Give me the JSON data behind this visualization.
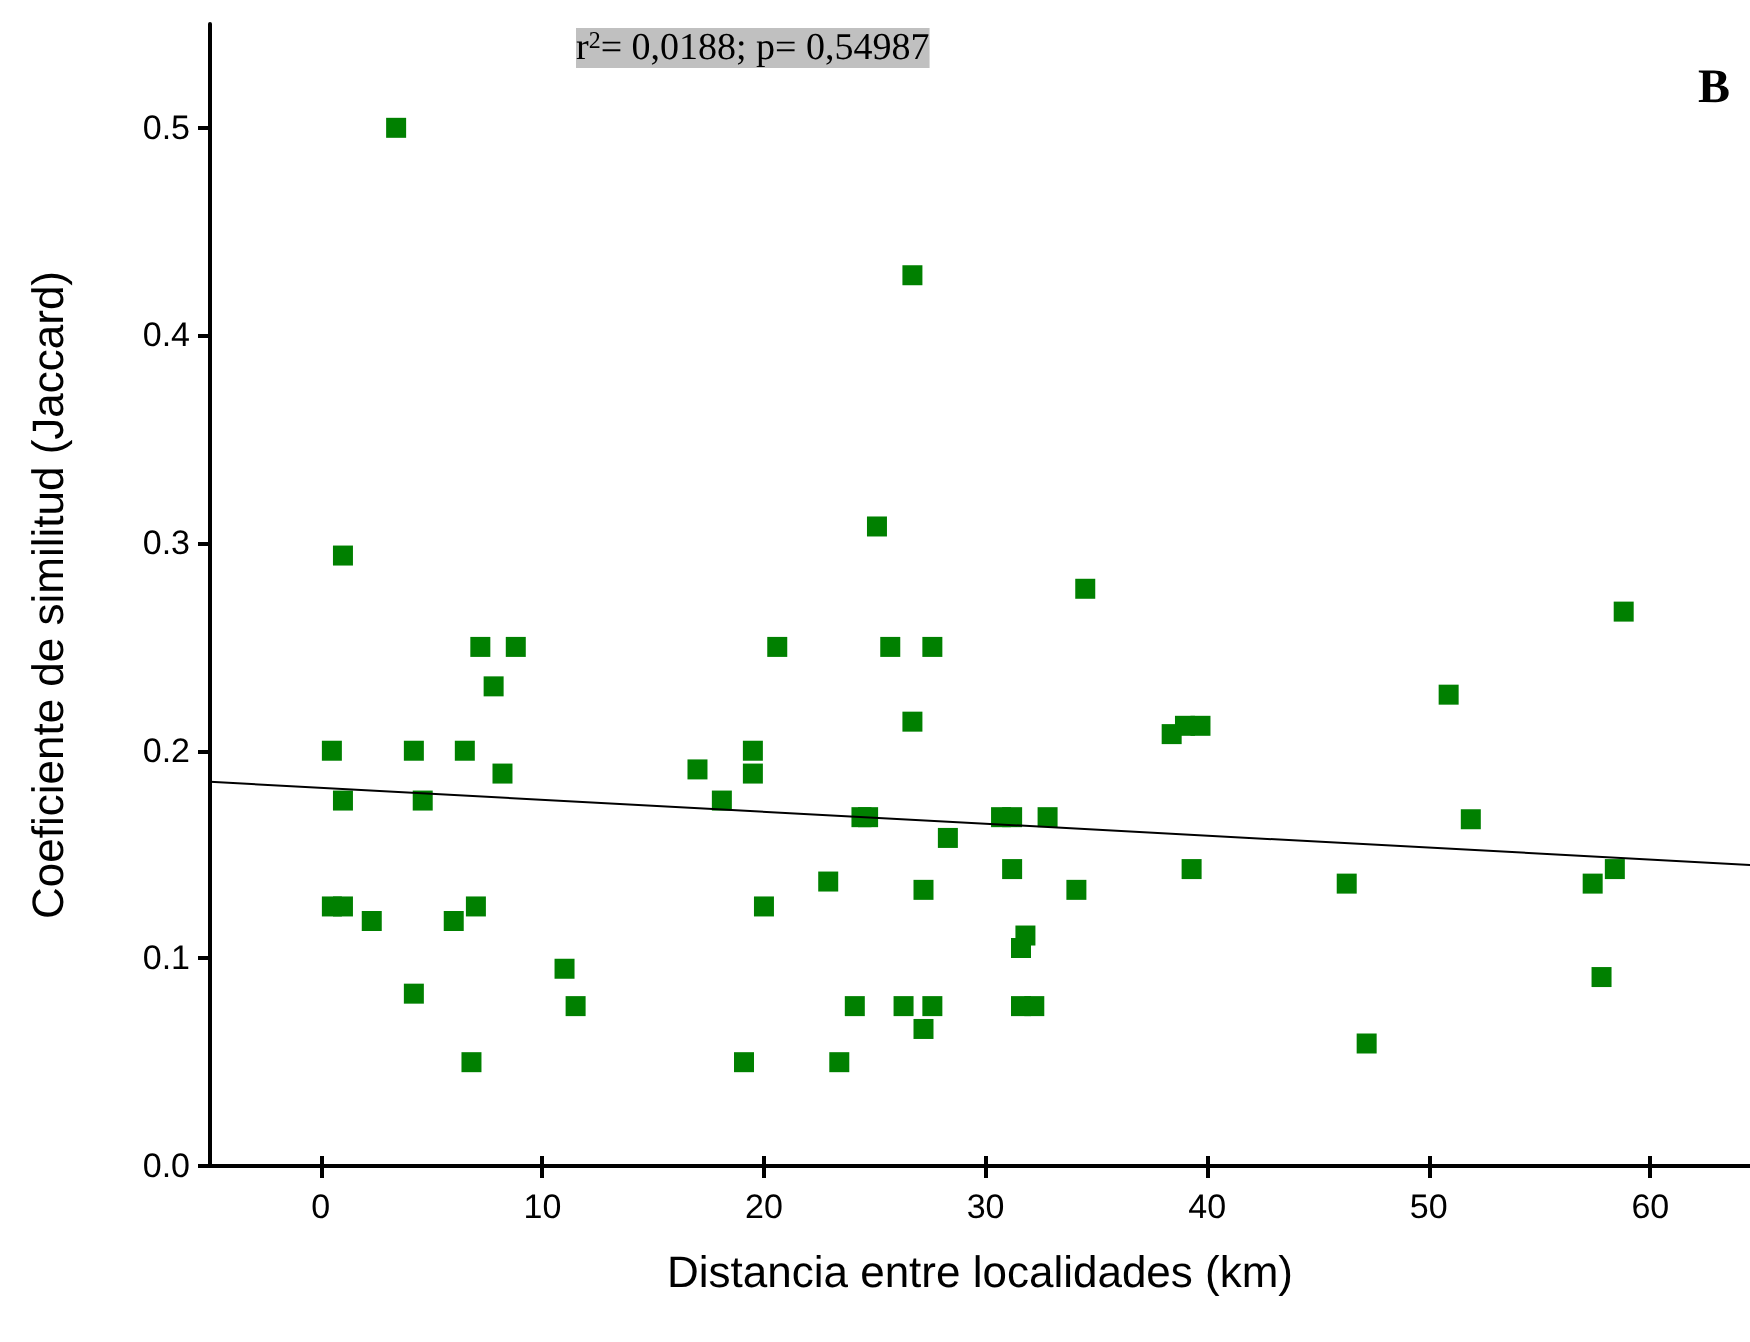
{
  "chart_data": {
    "type": "scatter",
    "xlabel": "Distancia entre localidades (km)",
    "ylabel": "Coeficiente de similitud (Jaccard)",
    "annotations": [
      "r$^{2}$= 0,0188; p= 0,54987",
      "B"
    ],
    "x": [
      0.5,
      0.5,
      1.0,
      1.0,
      1.0,
      2.3,
      3.4,
      4.2,
      4.2,
      4.6,
      6.0,
      6.5,
      6.8,
      7.0,
      7.2,
      7.8,
      8.2,
      8.8,
      11.0,
      11.5,
      17.0,
      18.1,
      19.1,
      19.5,
      19.5,
      20.0,
      20.6,
      22.9,
      23.4,
      24.1,
      24.4,
      24.7,
      25.1,
      25.7,
      26.3,
      26.7,
      26.7,
      27.2,
      27.2,
      27.6,
      27.6,
      28.3,
      30.7,
      31.2,
      31.2,
      31.6,
      31.8,
      31.6,
      32.2,
      32.8,
      34.1,
      34.5,
      38.4,
      39.0,
      39.7,
      39.3,
      46.3,
      47.2,
      50.9,
      51.9,
      57.4,
      57.8,
      58.4,
      58.8
    ],
    "series": [
      {
        "color": "#008000",
        "marker": "square",
        "values": [
          0.2,
          0.125,
          0.294,
          0.176,
          0.125,
          0.118,
          0.5,
          0.2,
          0.083,
          0.176,
          0.118,
          0.2,
          0.05,
          0.125,
          0.25,
          0.231,
          0.189,
          0.25,
          0.095,
          0.077,
          0.191,
          0.176,
          0.05,
          0.2,
          0.189,
          0.125,
          0.25,
          0.137,
          0.05,
          0.077,
          0.168,
          0.168,
          0.308,
          0.25,
          0.077,
          0.429,
          0.214,
          0.133,
          0.066,
          0.077,
          0.25,
          0.158,
          0.168,
          0.143,
          0.168,
          0.105,
          0.111,
          0.077,
          0.077,
          0.168,
          0.133,
          0.278,
          0.208,
          0.212,
          0.212,
          0.143,
          0.136,
          0.059,
          0.227,
          0.167,
          0.136,
          0.091,
          0.143,
          0.267
        ]
      },
      {
        "type": "line",
        "color": "#000000",
        "marker": "none",
        "line_style": "solid",
        "x": [
          -5,
          64.5
        ],
        "values": [
          0.185,
          0.145
        ]
      }
    ],
    "xlim": [
      -5,
      64.5
    ],
    "ylim": [
      0,
      0.55
    ],
    "xticks": [
      0,
      10,
      20,
      30,
      40,
      50,
      60
    ],
    "yticks": [
      {
        "value": 0,
        "label": "0.0"
      },
      {
        "value": 0.1,
        "label": "0.1"
      },
      {
        "value": 0.2,
        "label": "0.2"
      },
      {
        "value": 0.3,
        "label": "0.3"
      },
      {
        "value": 0.4,
        "label": "0.4"
      },
      {
        "value": 0.5,
        "label": "0.5"
      }
    ],
    "grid": false
  }
}
